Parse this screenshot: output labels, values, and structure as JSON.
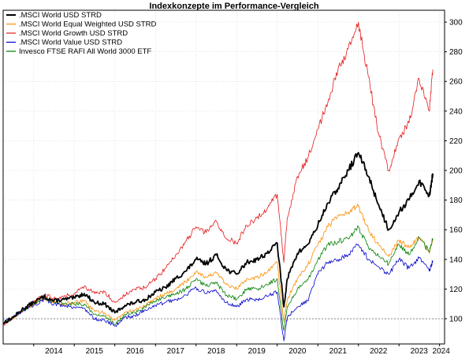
{
  "chart_data": {
    "type": "line",
    "title": "Indexkonzepte im Performance-Vergleich",
    "xlabel": "",
    "ylabel": "",
    "x_ticks": [
      "2014",
      "2015",
      "2016",
      "2017",
      "2018",
      "2019",
      "2020",
      "2021",
      "2022",
      "2023",
      "2024"
    ],
    "y_ticks": [
      100,
      120,
      140,
      160,
      180,
      200,
      220,
      240,
      260,
      280,
      300
    ],
    "xlim": [
      "2013-04-01",
      "2024-02-15"
    ],
    "ylim": [
      83,
      308
    ],
    "reference_line": 100,
    "grid": true,
    "legend_position": "top-left",
    "x": [
      "2013-04",
      "2013-07",
      "2013-10",
      "2014-01",
      "2014-04",
      "2014-07",
      "2014-10",
      "2015-01",
      "2015-04",
      "2015-07",
      "2015-10",
      "2016-01",
      "2016-04",
      "2016-07",
      "2016-10",
      "2017-01",
      "2017-04",
      "2017-07",
      "2017-10",
      "2018-01",
      "2018-04",
      "2018-07",
      "2018-10",
      "2019-01",
      "2019-04",
      "2019-07",
      "2019-10",
      "2020-01",
      "2020-03",
      "2020-04",
      "2020-07",
      "2020-10",
      "2021-01",
      "2021-04",
      "2021-07",
      "2021-10",
      "2022-01",
      "2022-04",
      "2022-07",
      "2022-10",
      "2023-01",
      "2023-04",
      "2023-07",
      "2023-10",
      "2023-11"
    ],
    "series": [
      {
        "name": ".MSCI World USD STRD",
        "color": "#000000",
        "values": [
          97,
          101,
          107,
          111,
          115,
          112,
          113,
          114,
          117,
          111,
          110,
          104,
          109,
          111,
          113,
          118,
          121,
          127,
          132,
          140,
          137,
          143,
          133,
          130,
          138,
          140,
          144,
          151,
          108,
          127,
          144,
          150,
          163,
          178,
          188,
          200,
          212,
          196,
          177,
          160,
          172,
          180,
          193,
          183,
          198
        ]
      },
      {
        "name": ".MSCI World Equal Weighted USD STRD",
        "color": "#ff8c00",
        "values": [
          97,
          101,
          106,
          110,
          114,
          111,
          110,
          111,
          112,
          105,
          104,
          99,
          104,
          106,
          109,
          114,
          117,
          120,
          125,
          132,
          128,
          131,
          123,
          120,
          127,
          128,
          131,
          138,
          98,
          113,
          127,
          136,
          150,
          162,
          170,
          172,
          176,
          160,
          150,
          142,
          153,
          148,
          155,
          144,
          154
        ]
      },
      {
        "name": ".MSCI World Growth USD STRD",
        "color": "#e31a1c",
        "values": [
          96,
          100,
          106,
          111,
          116,
          114,
          115,
          117,
          122,
          117,
          118,
          111,
          116,
          120,
          121,
          127,
          134,
          143,
          152,
          162,
          158,
          166,
          154,
          151,
          163,
          168,
          174,
          184,
          138,
          168,
          196,
          208,
          228,
          246,
          268,
          282,
          300,
          263,
          225,
          200,
          222,
          232,
          262,
          240,
          268
        ]
      },
      {
        "name": ".MSCI World Value USD STRD",
        "color": "#0000cc",
        "values": [
          97,
          101,
          106,
          109,
          113,
          110,
          109,
          108,
          107,
          100,
          99,
          95,
          101,
          102,
          106,
          109,
          111,
          113,
          116,
          121,
          117,
          119,
          111,
          108,
          113,
          113,
          115,
          118,
          85,
          101,
          108,
          112,
          130,
          138,
          140,
          143,
          150,
          140,
          135,
          130,
          140,
          134,
          141,
          132,
          139
        ]
      },
      {
        "name": "Invesco FTSE RAFI All World 3000 ETF",
        "color": "#008000",
        "values": [
          97,
          101,
          106,
          110,
          114,
          111,
          110,
          110,
          110,
          103,
          102,
          96,
          103,
          104,
          108,
          112,
          114,
          117,
          120,
          127,
          122,
          124,
          116,
          113,
          120,
          120,
          123,
          127,
          92,
          108,
          120,
          126,
          140,
          150,
          152,
          154,
          162,
          148,
          142,
          137,
          150,
          143,
          155,
          145,
          154
        ]
      }
    ]
  }
}
